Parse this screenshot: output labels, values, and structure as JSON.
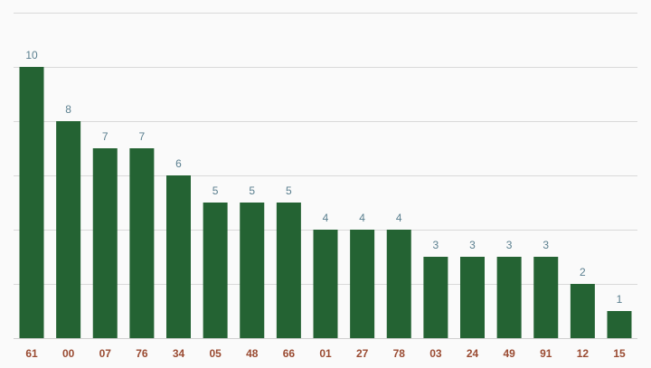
{
  "chart_data": {
    "type": "bar",
    "title": "",
    "xlabel": "",
    "ylabel": "",
    "categories": [
      "61",
      "00",
      "07",
      "76",
      "34",
      "05",
      "48",
      "66",
      "01",
      "27",
      "78",
      "03",
      "24",
      "49",
      "91",
      "12",
      "15"
    ],
    "values": [
      10,
      8,
      7,
      7,
      6,
      5,
      5,
      5,
      4,
      4,
      4,
      3,
      3,
      3,
      3,
      2,
      1
    ],
    "ylim": [
      0,
      12
    ],
    "grid": true,
    "gridlines_at": [
      0,
      2,
      4,
      6,
      8,
      10,
      12
    ],
    "bar_color": "#246333",
    "value_label_color": "#5a7f8f",
    "tick_label_color": "#9a4b32"
  }
}
